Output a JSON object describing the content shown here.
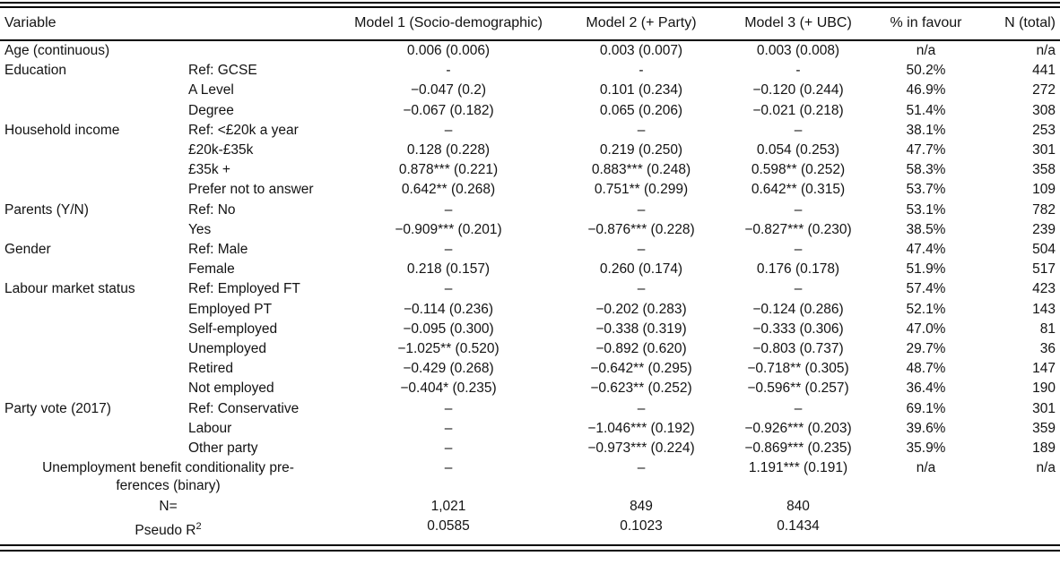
{
  "table": {
    "header": {
      "variable": "Variable",
      "category": "",
      "m1": "Model 1 (Socio-demographic)",
      "m2": "Model 2 (+ Party)",
      "m3": "Model 3 (+ UBC)",
      "pct": "% in favour",
      "n": "N (total)"
    },
    "rows": [
      {
        "variable": "Age (continuous)",
        "category": "",
        "m1": "0.006 (0.006)",
        "m2": "0.003 (0.007)",
        "m3": "0.003 (0.008)",
        "pct": "n/a",
        "n": "n/a"
      },
      {
        "variable": "Education",
        "category": "Ref: GCSE",
        "m1": "-",
        "m2": "-",
        "m3": "-",
        "pct": "50.2%",
        "n": "441"
      },
      {
        "variable": "",
        "category": "A Level",
        "m1": "−0.047 (0.2)",
        "m2": "0.101 (0.234)",
        "m3": "−0.120 (0.244)",
        "pct": "46.9%",
        "n": "272"
      },
      {
        "variable": "",
        "category": "Degree",
        "m1": "−0.067 (0.182)",
        "m2": "0.065 (0.206)",
        "m3": "−0.021 (0.218)",
        "pct": "51.4%",
        "n": "308"
      },
      {
        "variable": "Household income",
        "category": "Ref: <£20k a year",
        "m1": "–",
        "m2": "–",
        "m3": "–",
        "pct": "38.1%",
        "n": "253"
      },
      {
        "variable": "",
        "category": "£20k-£35k",
        "m1": "0.128 (0.228)",
        "m2": "0.219 (0.250)",
        "m3": "0.054 (0.253)",
        "pct": "47.7%",
        "n": "301"
      },
      {
        "variable": "",
        "category": "£35k +",
        "m1": "0.878*** (0.221)",
        "m2": "0.883*** (0.248)",
        "m3": "0.598** (0.252)",
        "pct": "58.3%",
        "n": "358"
      },
      {
        "variable": "",
        "category": "Prefer not to answer",
        "m1": "0.642** (0.268)",
        "m2": "0.751** (0.299)",
        "m3": "0.642** (0.315)",
        "pct": "53.7%",
        "n": "109"
      },
      {
        "variable": "Parents (Y/N)",
        "category": "Ref: No",
        "m1": "–",
        "m2": "–",
        "m3": "–",
        "pct": "53.1%",
        "n": "782"
      },
      {
        "variable": "",
        "category": "Yes",
        "m1": "−0.909*** (0.201)",
        "m2": "−0.876*** (0.228)",
        "m3": "−0.827*** (0.230)",
        "pct": "38.5%",
        "n": "239"
      },
      {
        "variable": "Gender",
        "category": "Ref: Male",
        "m1": "–",
        "m2": "–",
        "m3": "–",
        "pct": "47.4%",
        "n": "504"
      },
      {
        "variable": "",
        "category": "Female",
        "m1": "0.218 (0.157)",
        "m2": "0.260 (0.174)",
        "m3": "0.176 (0.178)",
        "pct": "51.9%",
        "n": "517"
      },
      {
        "variable": "Labour market status",
        "category": "Ref: Employed FT",
        "m1": "–",
        "m2": "–",
        "m3": "–",
        "pct": "57.4%",
        "n": "423"
      },
      {
        "variable": "",
        "category": "Employed PT",
        "m1": "−0.114 (0.236)",
        "m2": "−0.202 (0.283)",
        "m3": "−0.124 (0.286)",
        "pct": "52.1%",
        "n": "143"
      },
      {
        "variable": "",
        "category": "Self-employed",
        "m1": "−0.095 (0.300)",
        "m2": "−0.338 (0.319)",
        "m3": "−0.333 (0.306)",
        "pct": "47.0%",
        "n": "81"
      },
      {
        "variable": "",
        "category": "Unemployed",
        "m1": "−1.025** (0.520)",
        "m2": "−0.892 (0.620)",
        "m3": "−0.803 (0.737)",
        "pct": "29.7%",
        "n": "36"
      },
      {
        "variable": "",
        "category": "Retired",
        "m1": "−0.429 (0.268)",
        "m2": "−0.642** (0.295)",
        "m3": "−0.718** (0.305)",
        "pct": "48.7%",
        "n": "147"
      },
      {
        "variable": "",
        "category": "Not employed",
        "m1": "−0.404* (0.235)",
        "m2": "−0.623** (0.252)",
        "m3": "−0.596** (0.257)",
        "pct": "36.4%",
        "n": "190"
      },
      {
        "variable": "Party vote (2017)",
        "category": "Ref: Conservative",
        "m1": "–",
        "m2": "–",
        "m3": "–",
        "pct": "69.1%",
        "n": "301"
      },
      {
        "variable": "",
        "category": "Labour",
        "m1": "–",
        "m2": "−1.046*** (0.192)",
        "m3": "−0.926*** (0.203)",
        "pct": "39.6%",
        "n": "359"
      },
      {
        "variable": "",
        "category": "Other party",
        "m1": "–",
        "m2": "−0.973*** (0.224)",
        "m3": "−0.869*** (0.235)",
        "pct": "35.9%",
        "n": "189"
      },
      {
        "span_line1": "Unemployment benefit conditionality pre-",
        "span_line2": "ferences (binary)",
        "m1": "–",
        "m2": "–",
        "m3": "1.191*** (0.191)",
        "pct": "n/a",
        "n": "n/a"
      }
    ],
    "stats": [
      {
        "label": "N=",
        "sup": "",
        "m1": "1,021",
        "m2": "849",
        "m3": "840",
        "pct": "",
        "n": ""
      },
      {
        "label": "Pseudo R",
        "sup": "2",
        "m1": "0.0585",
        "m2": "0.1023",
        "m3": "0.1434",
        "pct": "",
        "n": ""
      }
    ]
  }
}
